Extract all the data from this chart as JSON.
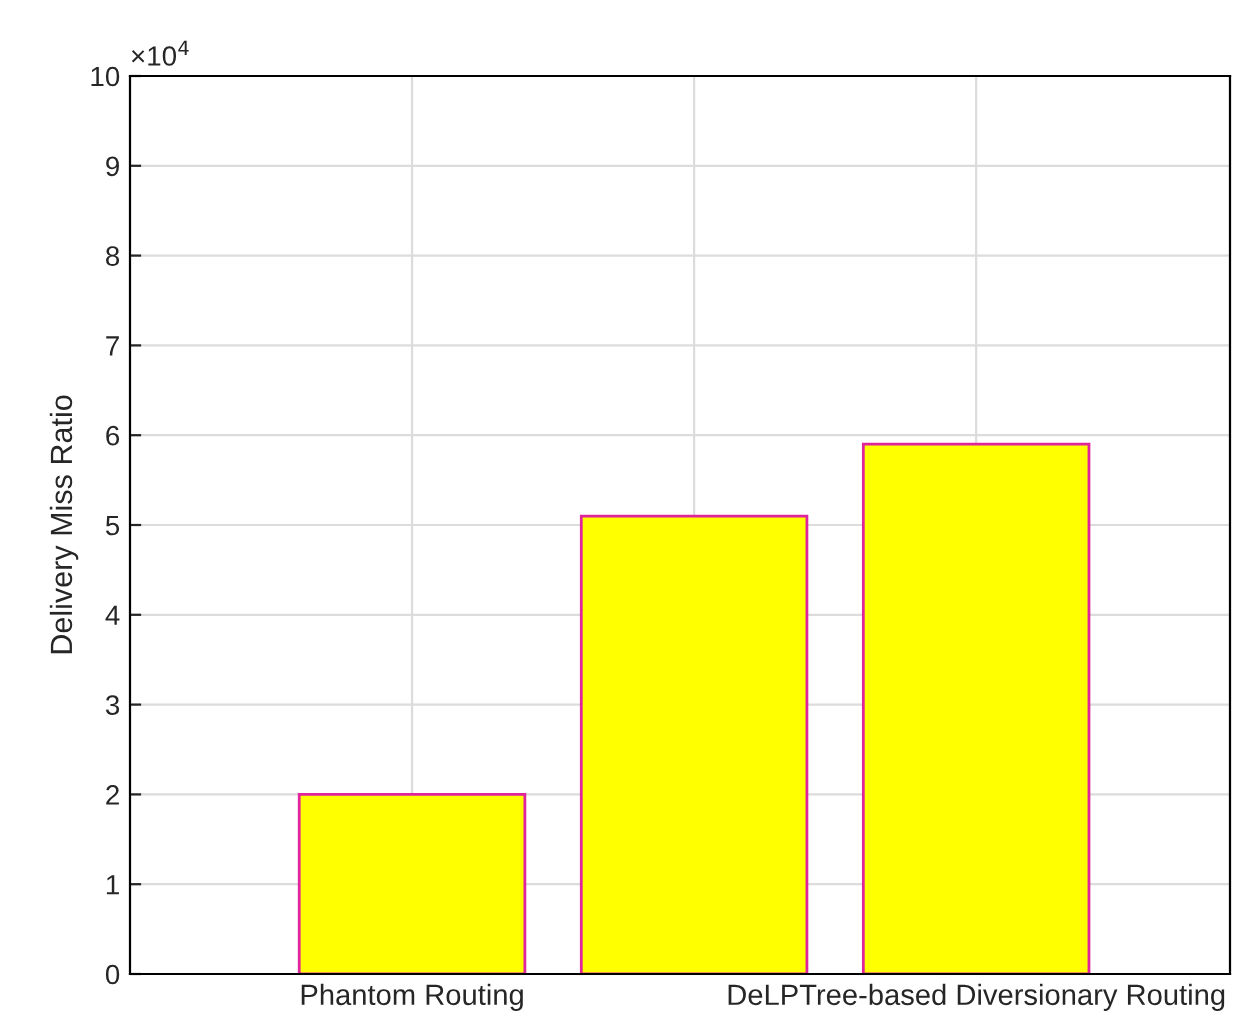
{
  "chart_data": {
    "type": "bar",
    "ylabel": "Delivery Miss Ratio",
    "categories": [
      "Phantom Routing",
      null,
      "DeLPTree-based Diversionary Routing"
    ],
    "series": [
      {
        "color": "#ffff00",
        "values": [
          2.0,
          5.1,
          5.9
        ]
      }
    ],
    "ylim": [
      0,
      10
    ],
    "yticks": [
      0,
      1,
      2,
      3,
      4,
      5,
      6,
      7,
      8,
      9,
      10
    ],
    "annotations": [
      "×10$^{4}$"
    ],
    "grid": true
  }
}
